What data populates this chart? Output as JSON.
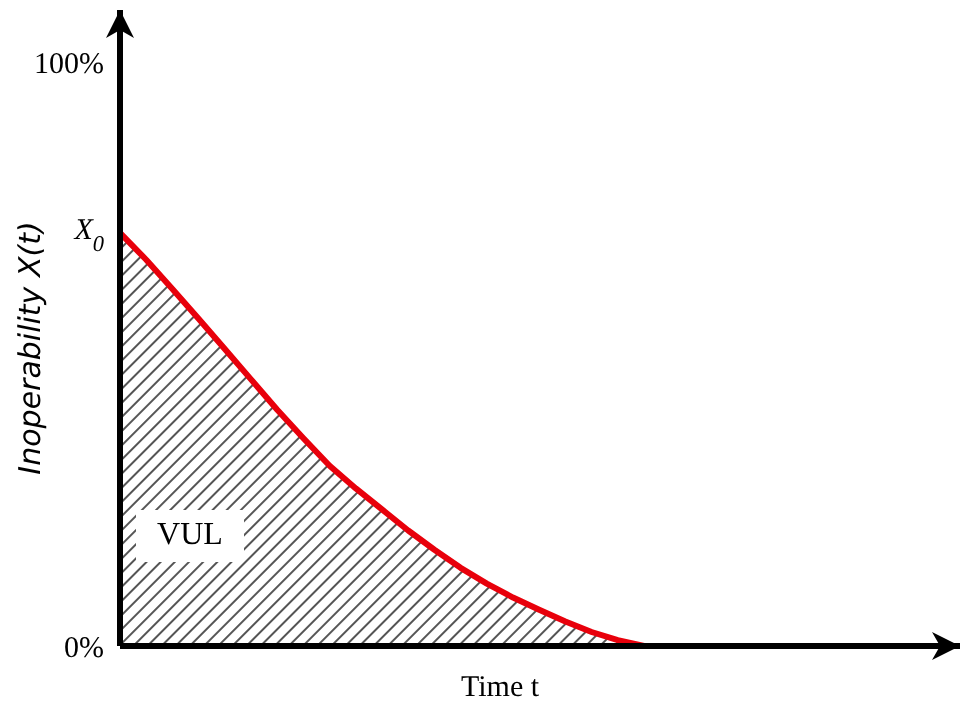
{
  "chart_data": {
    "type": "area",
    "xlabel": "Time t",
    "ylabel": "Inoperability X(t)",
    "categories": [
      null,
      null,
      null,
      null,
      null,
      null,
      null,
      null,
      null,
      null,
      null,
      null,
      null,
      null,
      null,
      null,
      null,
      null,
      null,
      null,
      null
    ],
    "series": [
      {
        "color": "#e8000b",
        "values": [
          70.8,
          66.2,
          61.2,
          56.1,
          50.9,
          45.7,
          40.5,
          35.6,
          30.9,
          27.0,
          23.4,
          19.8,
          16.5,
          13.4,
          10.7,
          8.3,
          6.2,
          4.2,
          2.4,
          1.0,
          0
        ]
      }
    ],
    "ylim": [
      0,
      109
    ],
    "yticks": [
      {
        "value": 0,
        "label": "0%"
      },
      {
        "value": 100,
        "label": "100%"
      }
    ],
    "annotations": [
      "VUL",
      "X$_{0}$"
    ],
    "grid": false,
    "legend": false
  }
}
